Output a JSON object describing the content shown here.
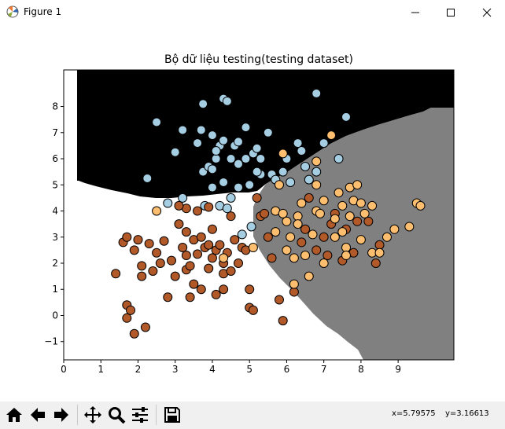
{
  "window": {
    "title": "Figure 1",
    "controls": [
      "minimize",
      "maximize",
      "close"
    ]
  },
  "toolbar": {
    "buttons": [
      {
        "name": "home-button",
        "icon": "home-icon"
      },
      {
        "name": "back-button",
        "icon": "arrow-left-icon"
      },
      {
        "name": "forward-button",
        "icon": "arrow-right-icon"
      },
      {
        "name": "pan-button",
        "icon": "move-icon"
      },
      {
        "name": "zoom-button",
        "icon": "magnifier-icon"
      },
      {
        "name": "configure-subplots-button",
        "icon": "sliders-icon"
      },
      {
        "name": "save-button",
        "icon": "floppy-disk-icon"
      }
    ],
    "coords": {
      "x": "x=5.79575",
      "y": "y=3.16613"
    }
  },
  "colors": {
    "region_top": "#000000",
    "region_left": "#ffffff",
    "region_right": "#808080",
    "class_top": "#a6cee3",
    "class_left": "#b15928",
    "class_right": "#fdbf6f"
  },
  "chart_data": {
    "type": "scatter",
    "title": "Bộ dữ liệu testing(testing dataset)",
    "xlabel": "",
    "ylabel": "",
    "xlim": [
      0,
      10.5
    ],
    "ylim": [
      -1.7,
      9.4
    ],
    "xticks": [
      "0",
      "1",
      "2",
      "3",
      "4",
      "5",
      "6",
      "7",
      "8",
      "9"
    ],
    "yticks": [
      "−1",
      "0",
      "1",
      "2",
      "3",
      "4",
      "5",
      "6",
      "7",
      "8"
    ],
    "grid": false,
    "legend": "none",
    "background": "decision regions (black top, white left, gray right)",
    "series": [
      {
        "color": "#a6cee3",
        "points": [
          [
            2.25,
            5.25
          ],
          [
            2.5,
            7.4
          ],
          [
            3.0,
            6.25
          ],
          [
            3.2,
            7.1
          ],
          [
            3.75,
            8.1
          ],
          [
            3.75,
            5.5
          ],
          [
            3.9,
            5.7
          ],
          [
            3.7,
            7.1
          ],
          [
            4.0,
            5.6
          ],
          [
            4.1,
            6.0
          ],
          [
            4.2,
            6.5
          ],
          [
            4.0,
            4.9
          ],
          [
            4.3,
            8.3
          ],
          [
            4.4,
            8.2
          ],
          [
            4.3,
            6.7
          ],
          [
            4.3,
            5.1
          ],
          [
            4.5,
            6.0
          ],
          [
            4.6,
            6.5
          ],
          [
            4.5,
            4.5
          ],
          [
            4.7,
            5.8
          ],
          [
            4.7,
            4.9
          ],
          [
            4.9,
            6.0
          ],
          [
            5.0,
            5.0
          ],
          [
            5.1,
            6.2
          ],
          [
            5.2,
            6.4
          ],
          [
            5.3,
            5.4
          ],
          [
            5.3,
            6.0
          ],
          [
            5.5,
            7.0
          ],
          [
            5.6,
            5.4
          ],
          [
            5.7,
            5.2
          ],
          [
            5.9,
            5.5
          ],
          [
            6.0,
            6.0
          ],
          [
            6.1,
            5.1
          ],
          [
            6.3,
            6.6
          ],
          [
            6.4,
            6.3
          ],
          [
            6.5,
            5.7
          ],
          [
            6.6,
            5.2
          ],
          [
            6.8,
            5.5
          ],
          [
            6.8,
            8.5
          ],
          [
            7.6,
            7.6
          ],
          [
            7.0,
            6.6
          ],
          [
            7.4,
            6.0
          ],
          [
            3.2,
            4.5
          ],
          [
            3.8,
            4.2
          ],
          [
            4.2,
            4.2
          ],
          [
            4.4,
            4.1
          ],
          [
            4.8,
            3.1
          ],
          [
            5.05,
            3.4
          ],
          [
            2.8,
            4.3
          ],
          [
            3.6,
            6.6
          ],
          [
            4.0,
            6.9
          ],
          [
            4.1,
            6.3
          ],
          [
            4.7,
            6.65
          ],
          [
            4.9,
            7.2
          ],
          [
            5.2,
            5.5
          ]
        ]
      },
      {
        "color": "#b15928",
        "points": [
          [
            1.4,
            1.6
          ],
          [
            1.6,
            2.8
          ],
          [
            1.7,
            3.0
          ],
          [
            1.7,
            0.4
          ],
          [
            1.7,
            -0.1
          ],
          [
            1.8,
            0.2
          ],
          [
            1.9,
            -0.7
          ],
          [
            1.9,
            2.5
          ],
          [
            2.0,
            2.9
          ],
          [
            2.1,
            1.9
          ],
          [
            2.1,
            1.5
          ],
          [
            2.2,
            -0.45
          ],
          [
            2.3,
            2.75
          ],
          [
            2.4,
            1.7
          ],
          [
            2.5,
            2.4
          ],
          [
            2.6,
            2.0
          ],
          [
            2.7,
            2.85
          ],
          [
            2.8,
            0.7
          ],
          [
            2.9,
            2.1
          ],
          [
            3.0,
            1.5
          ],
          [
            3.1,
            3.5
          ],
          [
            3.2,
            2.6
          ],
          [
            3.3,
            4.1
          ],
          [
            3.3,
            2.3
          ],
          [
            3.3,
            1.75
          ],
          [
            3.4,
            1.9
          ],
          [
            3.4,
            0.7
          ],
          [
            3.5,
            2.9
          ],
          [
            3.5,
            1.2
          ],
          [
            3.6,
            2.35
          ],
          [
            3.7,
            3.0
          ],
          [
            3.7,
            1.0
          ],
          [
            3.8,
            2.6
          ],
          [
            3.9,
            1.8
          ],
          [
            3.9,
            4.15
          ],
          [
            4.0,
            3.3
          ],
          [
            4.0,
            2.2
          ],
          [
            4.1,
            2.5
          ],
          [
            4.1,
            0.8
          ],
          [
            4.2,
            2.7
          ],
          [
            4.3,
            1.6
          ],
          [
            4.3,
            2.0
          ],
          [
            4.4,
            2.4
          ],
          [
            4.5,
            1.7
          ],
          [
            4.5,
            3.8
          ],
          [
            4.6,
            2.9
          ],
          [
            4.7,
            2.0
          ],
          [
            4.8,
            2.6
          ],
          [
            4.9,
            2.5
          ],
          [
            5.0,
            1.0
          ],
          [
            5.0,
            0.3
          ],
          [
            5.1,
            0.2
          ],
          [
            5.2,
            4.5
          ],
          [
            5.3,
            3.8
          ],
          [
            5.4,
            3.9
          ],
          [
            5.5,
            3.0
          ],
          [
            5.6,
            2.2
          ],
          [
            5.8,
            0.6
          ],
          [
            5.9,
            -0.2
          ],
          [
            6.2,
            0.9
          ],
          [
            6.4,
            2.8
          ],
          [
            6.5,
            3.3
          ],
          [
            6.6,
            4.5
          ],
          [
            6.8,
            2.5
          ],
          [
            7.0,
            3.0
          ],
          [
            7.1,
            2.3
          ],
          [
            7.2,
            3.5
          ],
          [
            7.3,
            3.9
          ],
          [
            7.5,
            2.1
          ],
          [
            7.6,
            3.3
          ],
          [
            7.8,
            2.4
          ],
          [
            7.9,
            3.6
          ],
          [
            8.2,
            3.6
          ],
          [
            8.4,
            2.0
          ],
          [
            8.5,
            2.7
          ],
          [
            3.1,
            4.2
          ],
          [
            3.3,
            3.2
          ],
          [
            3.6,
            4.0
          ],
          [
            3.9,
            2.7
          ],
          [
            4.3,
            1.0
          ]
        ]
      },
      {
        "color": "#fdbf6f",
        "points": [
          [
            2.5,
            4.0
          ],
          [
            4.3,
            2.2
          ],
          [
            5.1,
            2.6
          ],
          [
            5.7,
            3.2
          ],
          [
            5.7,
            4.0
          ],
          [
            5.8,
            5.0
          ],
          [
            5.9,
            6.2
          ],
          [
            5.9,
            3.9
          ],
          [
            6.0,
            3.6
          ],
          [
            6.0,
            2.5
          ],
          [
            6.1,
            3.0
          ],
          [
            6.2,
            1.2
          ],
          [
            6.2,
            2.2
          ],
          [
            6.3,
            3.8
          ],
          [
            6.3,
            3.5
          ],
          [
            6.4,
            4.3
          ],
          [
            6.5,
            2.3
          ],
          [
            6.7,
            3.1
          ],
          [
            6.8,
            5.0
          ],
          [
            6.8,
            4.0
          ],
          [
            6.8,
            5.9
          ],
          [
            6.9,
            3.9
          ],
          [
            7.0,
            2.0
          ],
          [
            7.2,
            6.9
          ],
          [
            7.3,
            3.7
          ],
          [
            7.4,
            4.7
          ],
          [
            7.5,
            4.2
          ],
          [
            7.5,
            3.2
          ],
          [
            7.6,
            2.6
          ],
          [
            7.7,
            4.9
          ],
          [
            7.7,
            3.8
          ],
          [
            7.8,
            4.4
          ],
          [
            7.9,
            5.0
          ],
          [
            8.0,
            4.3
          ],
          [
            8.0,
            2.9
          ],
          [
            8.1,
            3.9
          ],
          [
            8.3,
            4.2
          ],
          [
            8.3,
            2.4
          ],
          [
            8.5,
            2.4
          ],
          [
            8.9,
            3.3
          ],
          [
            9.3,
            3.4
          ],
          [
            9.5,
            4.3
          ],
          [
            9.6,
            4.2
          ],
          [
            7.3,
            3.0
          ],
          [
            7.6,
            2.3
          ],
          [
            8.7,
            3.0
          ],
          [
            6.6,
            1.5
          ],
          [
            7.0,
            4.4
          ]
        ]
      }
    ]
  }
}
